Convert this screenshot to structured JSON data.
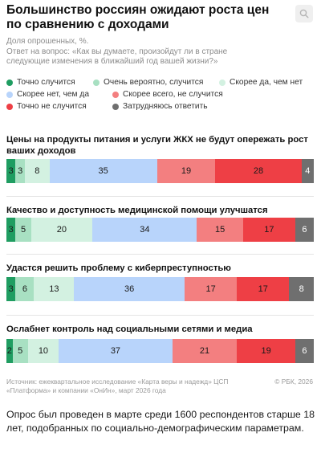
{
  "header": {
    "title": "Большинство россиян ожидают роста цен по сравнению с доходами",
    "subtitle_line1": "Доля опрошенных, %.",
    "subtitle_line2": "Ответ на вопрос: «Как вы думаете, произойдут ли в стране следующие изменения в ближайший год вашей жизни?»",
    "search_icon": "search-icon"
  },
  "legend": [
    {
      "label": "Точно случится",
      "color": "#1f9d61"
    },
    {
      "label": "Очень вероятно, случится",
      "color": "#a8e0c2"
    },
    {
      "label": "Скорее да, чем нет",
      "color": "#d3f1e1"
    },
    {
      "label": "Скорее нет, чем да",
      "color": "#b8d4fb"
    },
    {
      "label": "Скорее всего, не случится",
      "color": "#f37f80"
    },
    {
      "label": "Точно не случится",
      "color": "#ee3f45"
    },
    {
      "label": "Затрудняюсь ответить",
      "color": "#6f6f6f"
    }
  ],
  "chart_data": {
    "type": "bar",
    "orientation": "horizontal",
    "stacked": true,
    "categories": [
      "Цены на продукты питания и услуги ЖКХ не будут опережать рост ваших доходов",
      "Качество и доступность медицинской помощи улучшатся",
      "Удастся решить проблему с киберпреступностью",
      "Ослабнет контроль над социальными сетями и медиа"
    ],
    "series": [
      {
        "name": "Точно случится",
        "values": [
          3,
          3,
          3,
          2
        ]
      },
      {
        "name": "Очень вероятно, случится",
        "values": [
          3,
          5,
          6,
          5
        ]
      },
      {
        "name": "Скорее да, чем нет",
        "values": [
          8,
          20,
          13,
          10
        ]
      },
      {
        "name": "Скорее нет, чем да",
        "values": [
          35,
          34,
          36,
          37
        ]
      },
      {
        "name": "Скорее всего, не случится",
        "values": [
          19,
          15,
          17,
          21
        ]
      },
      {
        "name": "Точно не случится",
        "values": [
          28,
          17,
          17,
          19
        ]
      },
      {
        "name": "Затрудняюсь ответить",
        "values": [
          4,
          6,
          8,
          6
        ]
      }
    ]
  },
  "footer": {
    "source": "Источник: ежеквартальное исследование «Карта веры и надежд» ЦСП «Платформа» и компании «ОнИн», март 2026 года",
    "copyright": "© РБК, 2026"
  },
  "caption": "Опрос был проведен в марте среди 1600 респондентов старше 18 лет, подобранных по социально-демографическим параметрам."
}
